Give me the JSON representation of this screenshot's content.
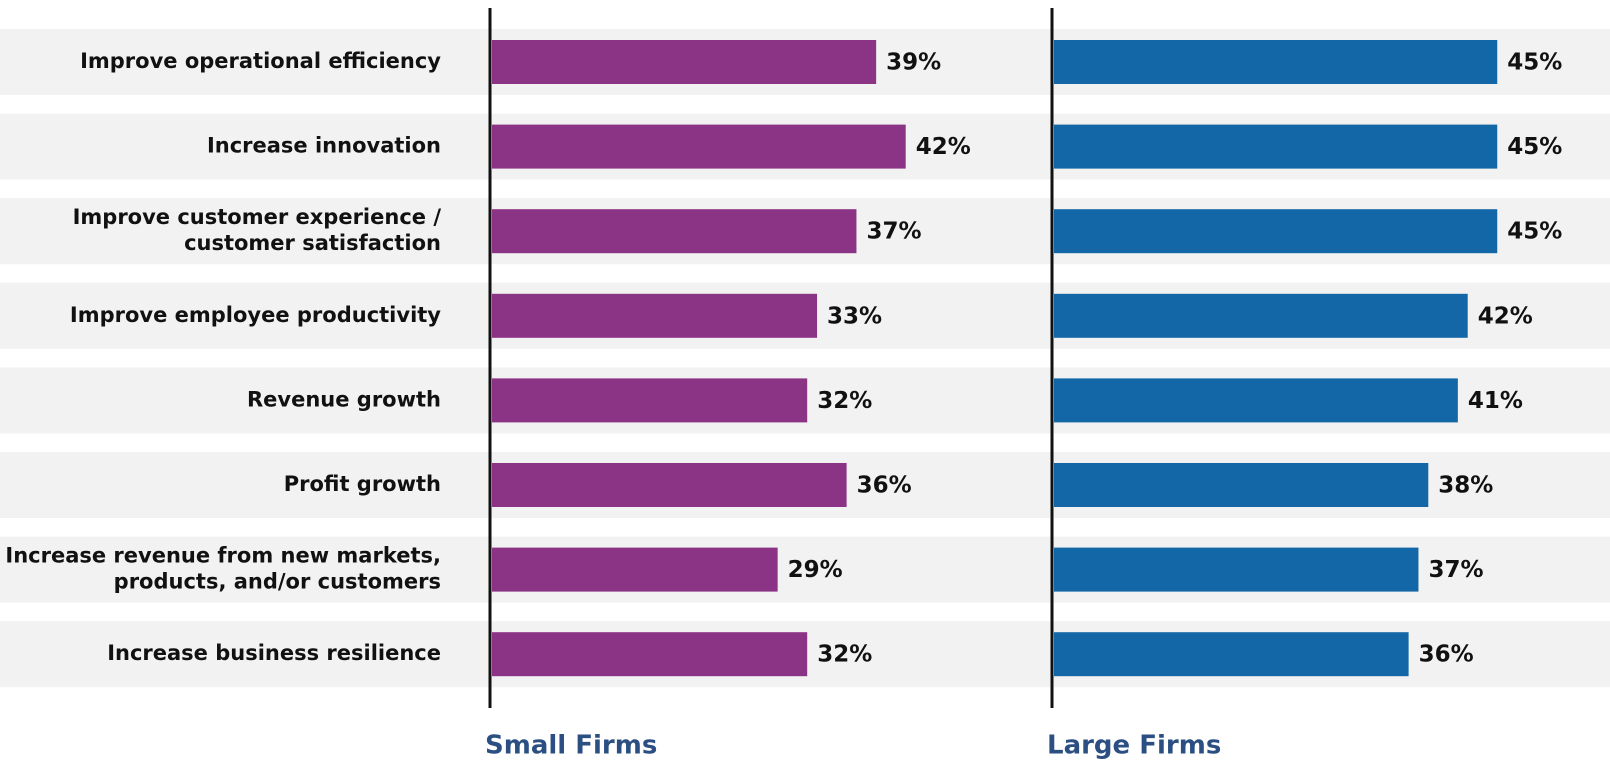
{
  "chart_data": {
    "type": "bar",
    "orientation": "horizontal",
    "categories": [
      "Improve operational efficiency",
      "Increase innovation",
      "Improve customer experience /\ncustomer satisfaction",
      "Improve employee productivity",
      "Revenue growth",
      "Profit growth",
      "Increase revenue from new markets,\nproducts, and/or customers",
      "Increase business resilience"
    ],
    "series": [
      {
        "name": "Small Firms",
        "color": "#8b3384",
        "values": [
          39,
          42,
          37,
          33,
          32,
          36,
          29,
          32
        ],
        "value_labels": [
          "39%",
          "42%",
          "37%",
          "33%",
          "32%",
          "36%",
          "29%",
          "32%"
        ]
      },
      {
        "name": "Large Firms",
        "color": "#1467a6",
        "values": [
          45,
          45,
          45,
          42,
          41,
          38,
          37,
          36
        ],
        "value_labels": [
          "45%",
          "45%",
          "45%",
          "42%",
          "41%",
          "38%",
          "37%",
          "36%"
        ]
      }
    ],
    "xlim": [
      0,
      55
    ]
  }
}
